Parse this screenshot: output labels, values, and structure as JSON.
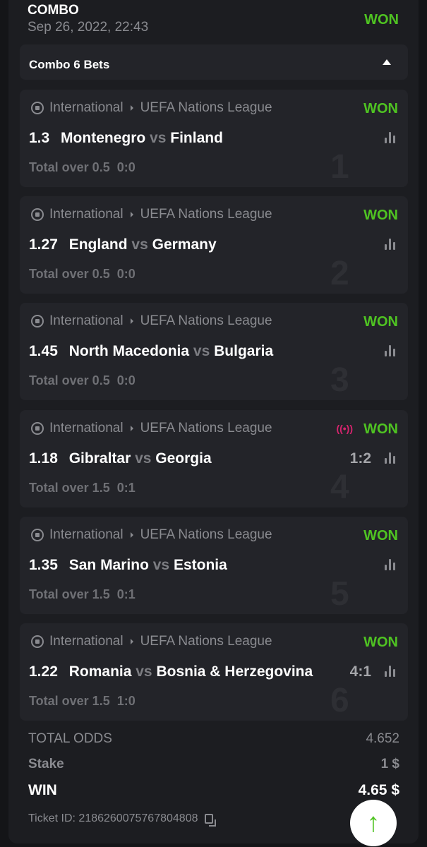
{
  "header": {
    "title": "COMBO",
    "date": "Sep 26, 2022, 22:43",
    "status": "WON"
  },
  "combo": {
    "label": "Combo 6 Bets"
  },
  "colors": {
    "won": "#4fc322",
    "live": "#d6246e"
  },
  "bets": [
    {
      "num": "1",
      "sport": "International",
      "league": "UEFA Nations League",
      "status": "WON",
      "odds": "1.3",
      "home": "Montenegro",
      "vs": "vs",
      "away": "Finland",
      "score": "",
      "market": "Total over 0.5",
      "market_score": "0:0",
      "live": false
    },
    {
      "num": "2",
      "sport": "International",
      "league": "UEFA Nations League",
      "status": "WON",
      "odds": "1.27",
      "home": "England",
      "vs": "vs",
      "away": "Germany",
      "score": "",
      "market": "Total over 0.5",
      "market_score": "0:0",
      "live": false
    },
    {
      "num": "3",
      "sport": "International",
      "league": "UEFA Nations League",
      "status": "WON",
      "odds": "1.45",
      "home": "North Macedonia",
      "vs": "vs",
      "away": "Bulgaria",
      "score": "",
      "market": "Total over 0.5",
      "market_score": "0:0",
      "live": false
    },
    {
      "num": "4",
      "sport": "International",
      "league": "UEFA Nations League",
      "status": "WON",
      "odds": "1.18",
      "home": "Gibraltar",
      "vs": "vs",
      "away": "Georgia",
      "score": "1:2",
      "market": "Total over 1.5",
      "market_score": "0:1",
      "live": true
    },
    {
      "num": "5",
      "sport": "International",
      "league": "UEFA Nations League",
      "status": "WON",
      "odds": "1.35",
      "home": "San Marino",
      "vs": "vs",
      "away": "Estonia",
      "score": "",
      "market": "Total over 1.5",
      "market_score": "0:1",
      "live": false
    },
    {
      "num": "6",
      "sport": "International",
      "league": "UEFA Nations League",
      "status": "WON",
      "odds": "1.22",
      "home": "Romania",
      "vs": "vs",
      "away": "Bosnia & Herzegovina",
      "score": "4:1",
      "market": "Total over 1.5",
      "market_score": "1:0",
      "live": false
    }
  ],
  "summary": {
    "total_odds_label": "TOTAL ODDS",
    "total_odds": "4.652",
    "stake_label": "Stake",
    "stake": "1 $",
    "win_label": "WIN",
    "win": "4.65 $",
    "ticket": "Ticket ID: 2186260075767804808"
  },
  "icons": {
    "scroll_top": "arrow-up-icon",
    "copy": "copy-icon",
    "sport": "soccer-ball-icon",
    "stats": "bar-chart-icon",
    "live": "live-broadcast-icon"
  }
}
